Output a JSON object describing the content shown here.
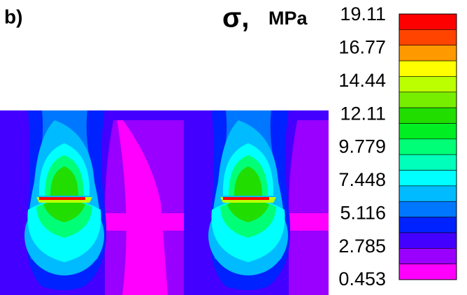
{
  "panel_label": "b)",
  "quantity": "σ,",
  "unit": "MPa",
  "colorbar": {
    "labels": [
      "19.11",
      "16.77",
      "14.44",
      "12.11",
      "9.779",
      "7.448",
      "5.116",
      "2.785",
      "0.453"
    ],
    "colors": [
      "#ff0000",
      "#ff4400",
      "#ff9900",
      "#ffff00",
      "#bbff00",
      "#77ee00",
      "#22dd00",
      "#00ee22",
      "#00ff77",
      "#00ffbb",
      "#00ffff",
      "#00bbff",
      "#0077ff",
      "#0022ff",
      "#4400ff",
      "#9900ff",
      "#ff00ff"
    ]
  }
}
